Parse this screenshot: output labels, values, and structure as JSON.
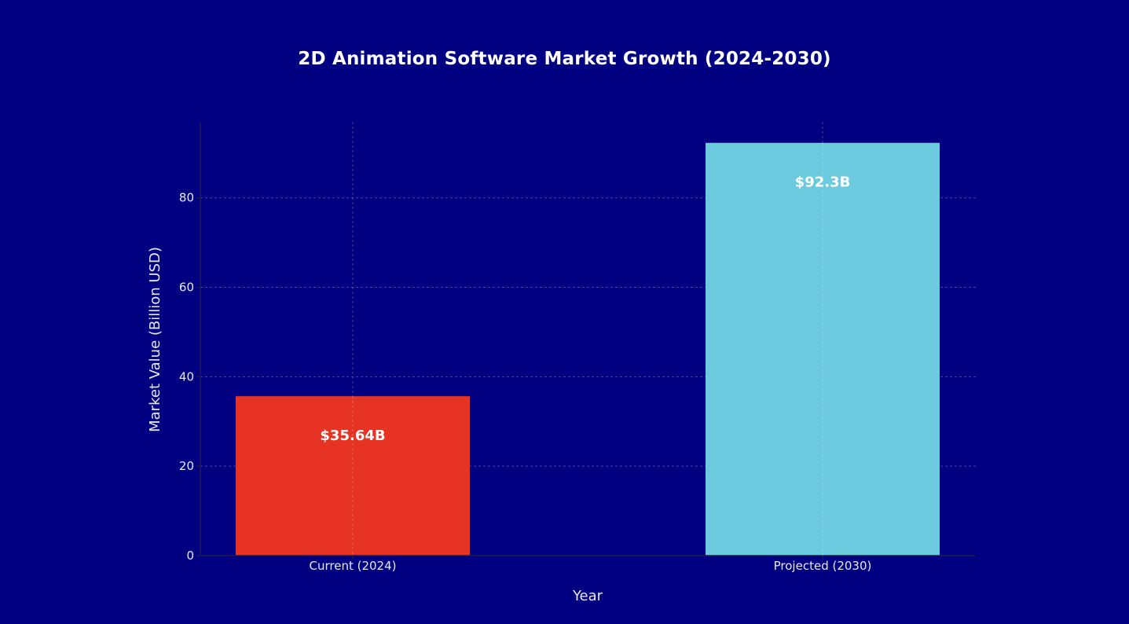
{
  "chart_data": {
    "type": "bar",
    "title": "2D Animation Software Market Growth (2024-2030)",
    "xlabel": "Year",
    "ylabel": "Market Value (Billion USD)",
    "categories": [
      "Current (2024)",
      "Projected (2030)"
    ],
    "values": [
      35.64,
      92.3
    ],
    "data_labels": [
      "$35.64B",
      "$92.3B"
    ],
    "colors": [
      "#e63323",
      "#6ccadf"
    ],
    "yticks": [
      0,
      20,
      40,
      60,
      80
    ],
    "ylim": [
      0,
      97
    ],
    "grid": true,
    "background": "#000080",
    "grid_color": "#7f7fb8",
    "axis_color": "#1c1c4a",
    "text_color": "#e8e8f4"
  }
}
